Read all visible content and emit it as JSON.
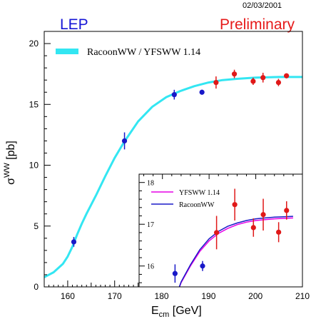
{
  "header": {
    "date": "02/03/2001",
    "left_title": "LEP",
    "right_title": "Preliminary"
  },
  "colors": {
    "lep": "#1515d6",
    "preliminary": "#e61a1a",
    "theory_band": "#33e6f2",
    "blue_points": "#1818c8",
    "red_points": "#e01818",
    "inset_yfsww": "#e600e6",
    "inset_racoon": "#1a1ac8"
  },
  "chart_data": [
    {
      "type": "scatter",
      "title": "",
      "xlabel": "E_cm [GeV]",
      "ylabel": "σ^WW [pb]",
      "xlim": [
        155,
        210
      ],
      "ylim": [
        0,
        21
      ],
      "x_ticks": [
        160,
        170,
        180,
        190,
        200,
        210
      ],
      "y_ticks": [
        0,
        5,
        10,
        15,
        20
      ],
      "legend": {
        "position": "top-left",
        "entries": [
          "RacoonWW / YFSWW 1.14"
        ]
      },
      "series": [
        {
          "name": "RacoonWW / YFSWW 1.14",
          "kind": "band",
          "x": [
            155,
            157,
            159,
            160,
            161,
            162,
            163,
            164,
            166,
            168,
            170,
            172,
            175,
            178,
            181,
            184,
            187,
            190,
            193,
            196,
            200,
            205,
            210
          ],
          "y": [
            0.8,
            1.2,
            1.9,
            2.5,
            3.3,
            4.3,
            5.2,
            6.0,
            7.5,
            9.1,
            10.6,
            11.9,
            13.6,
            14.8,
            15.6,
            16.1,
            16.5,
            16.8,
            17.0,
            17.1,
            17.2,
            17.25,
            17.25
          ]
        },
        {
          "name": "",
          "kind": "points",
          "color": "blue",
          "x": [
            161.3,
            172.1,
            182.7,
            188.6
          ],
          "y": [
            3.7,
            12.0,
            15.8,
            16.0
          ],
          "err": [
            0.4,
            0.7,
            0.4,
            0.2
          ]
        },
        {
          "name": "",
          "kind": "points",
          "color": "red",
          "x": [
            191.6,
            195.5,
            199.5,
            201.6,
            204.9,
            206.6
          ],
          "y": [
            16.8,
            17.5,
            16.9,
            17.2,
            16.8,
            17.35
          ],
          "err": [
            0.5,
            0.35,
            0.3,
            0.4,
            0.3,
            0.2
          ]
        }
      ]
    },
    {
      "type": "scatter",
      "title": "",
      "xlim": [
        175,
        210
      ],
      "ylim": [
        15.5,
        18.2
      ],
      "y_ticks": [
        16,
        17,
        18
      ],
      "legend": {
        "position": "top-left",
        "entries": [
          "YFSWW 1.14",
          "RacoonWW"
        ]
      },
      "series": [
        {
          "name": "YFSWW 1.14",
          "kind": "line",
          "x": [
            182,
            184,
            186,
            188,
            190,
            192,
            194,
            196,
            198,
            200,
            202,
            204,
            206,
            208
          ],
          "y": [
            15.0,
            15.6,
            16.0,
            16.35,
            16.6,
            16.78,
            16.9,
            16.99,
            17.05,
            17.09,
            17.11,
            17.13,
            17.14,
            17.15
          ]
        },
        {
          "name": "RacoonWW",
          "kind": "line",
          "x": [
            182,
            184,
            186,
            188,
            190,
            192,
            194,
            196,
            198,
            200,
            202,
            204,
            206,
            208
          ],
          "y": [
            15.0,
            15.62,
            16.03,
            16.39,
            16.65,
            16.83,
            16.95,
            17.03,
            17.09,
            17.13,
            17.15,
            17.17,
            17.18,
            17.19
          ]
        },
        {
          "name": "",
          "kind": "points",
          "color": "blue",
          "x": [
            182.7,
            188.6
          ],
          "y": [
            15.82,
            16.0
          ],
          "err": [
            0.22,
            0.12
          ]
        },
        {
          "name": "",
          "kind": "points",
          "color": "red",
          "x": [
            191.6,
            195.5,
            199.5,
            201.6,
            204.9,
            206.6
          ],
          "y": [
            16.8,
            17.47,
            16.92,
            17.23,
            16.81,
            17.33
          ],
          "err": [
            0.4,
            0.38,
            0.22,
            0.38,
            0.24,
            0.22
          ]
        }
      ]
    }
  ]
}
